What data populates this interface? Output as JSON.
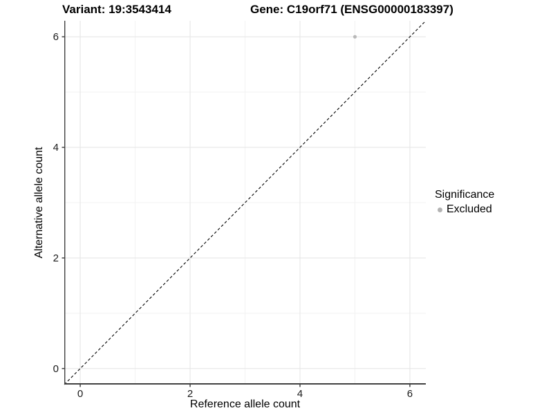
{
  "chart_data": {
    "type": "scatter",
    "title_left": "Variant: 19:3543414",
    "title_right": "Gene: C19orf71 (ENSG00000183397)",
    "xlabel": "Reference allele count",
    "ylabel": "Alternative allele count",
    "xlim": [
      -0.29,
      6.29
    ],
    "ylim": [
      -0.29,
      6.29
    ],
    "x_major_ticks": [
      0,
      2,
      4,
      6
    ],
    "x_minor_ticks": [
      1,
      3,
      5
    ],
    "y_major_ticks": [
      0,
      2,
      4,
      6
    ],
    "y_minor_ticks": [
      1,
      3,
      5
    ],
    "grid": "major-and-minor",
    "identity_line": {
      "type": "y=x",
      "style": "dashed",
      "color": "#000000"
    },
    "legend": {
      "title": "Significance",
      "position": "right",
      "items": [
        {
          "label": "Excluded",
          "color": "#b3b3b3"
        }
      ]
    },
    "series": [
      {
        "name": "Excluded",
        "color": "#b8b8b8",
        "marker_radius_px": 2.6,
        "points": [
          [
            5,
            6
          ]
        ]
      }
    ],
    "colors": {
      "background": "#ffffff",
      "axis_line": "#404040",
      "major_grid": "#e6e6e6",
      "minor_grid": "#f2f2f2",
      "tick_mark": "#333333",
      "tick_label": "#1a1a1a"
    }
  }
}
